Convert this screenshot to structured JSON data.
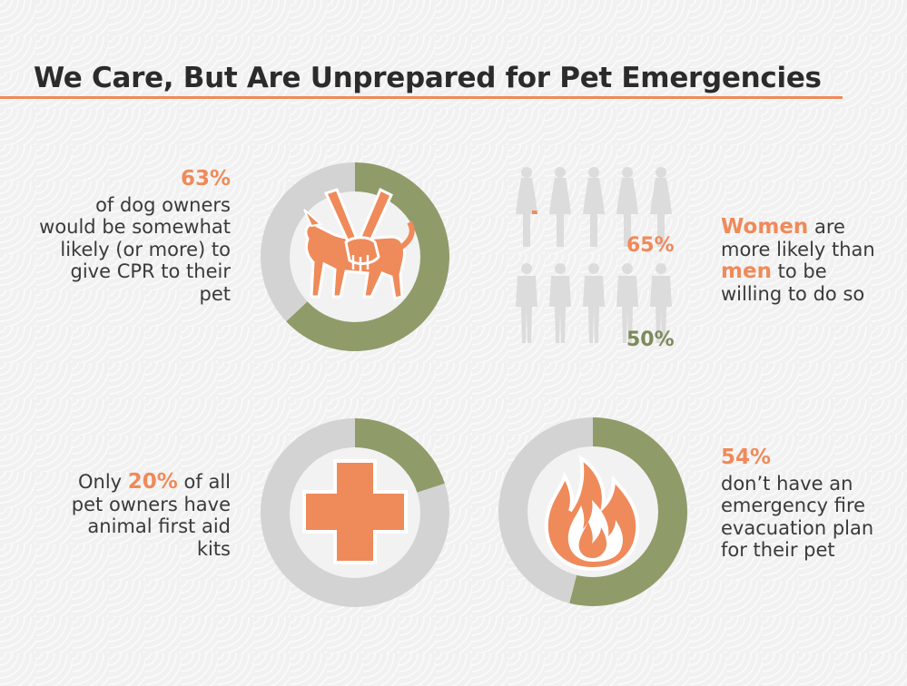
{
  "title": "We Care, But Are Unprepared for Pet Emergencies",
  "colors": {
    "accent": "#ef8a5a",
    "sage": "#909b6a",
    "gray": "#d3d3d3",
    "text": "#3a3a3a",
    "rule": "#ef8a5a"
  },
  "stats": {
    "cpr": {
      "pct": "63%",
      "text": "of dog owners would be somewhat likely (or more) to give CPR to their pet"
    },
    "gender": {
      "women": "Women",
      "text1": "are more likely than",
      "men": "men",
      "text2": "to be willing to do so",
      "women_pct": "65%",
      "men_pct": "50%"
    },
    "firstaid": {
      "prefix": "Only",
      "pct": "20%",
      "text": "of all pet owners have animal first aid kits"
    },
    "fire": {
      "pct": "54%",
      "text": "don’t have an emergency fire evacuation plan for their pet"
    }
  },
  "chart_data": [
    {
      "type": "pie",
      "name": "cpr_donut",
      "values": [
        63,
        37
      ],
      "icon": "dog-cpr-icon"
    },
    {
      "type": "pie",
      "name": "firstaid_donut",
      "values": [
        20,
        80
      ],
      "icon": "medical-cross-icon"
    },
    {
      "type": "pie",
      "name": "fire_donut",
      "values": [
        54,
        46
      ],
      "icon": "fire-icon"
    },
    {
      "type": "bar",
      "name": "gender_pictograph",
      "categories": [
        "Women",
        "Men"
      ],
      "values": [
        65,
        50
      ],
      "ylim": [
        0,
        100
      ]
    }
  ]
}
